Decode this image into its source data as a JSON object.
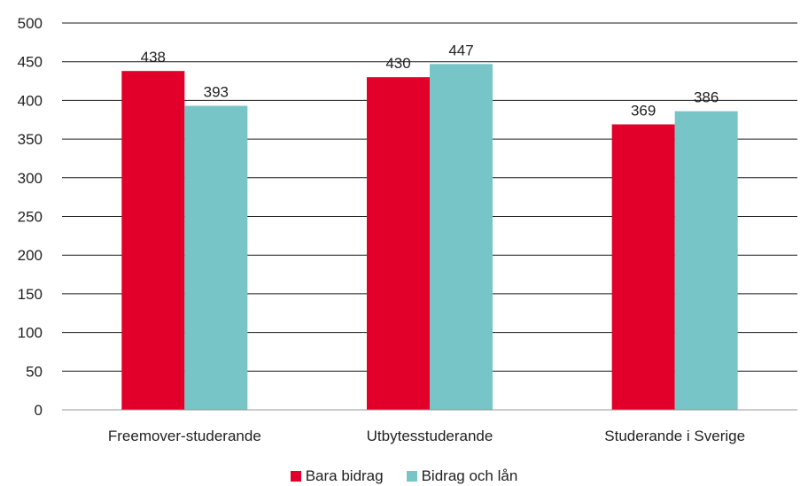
{
  "chart_data": {
    "type": "bar",
    "categories": [
      "Freemover-studerande",
      "Utbytesstuderande",
      "Studerande i Sverige"
    ],
    "series": [
      {
        "name": "Bara bidrag",
        "values": [
          438,
          430,
          369
        ],
        "color": "#e2002b"
      },
      {
        "name": "Bidrag och lån",
        "values": [
          393,
          447,
          386
        ],
        "color": "#78c5c8"
      }
    ],
    "ylim": [
      0,
      500
    ],
    "yticks": [
      0,
      50,
      100,
      150,
      200,
      250,
      300,
      350,
      400,
      450,
      500
    ],
    "grid": true,
    "legend_position": "bottom",
    "title": "",
    "xlabel": "",
    "ylabel": ""
  }
}
